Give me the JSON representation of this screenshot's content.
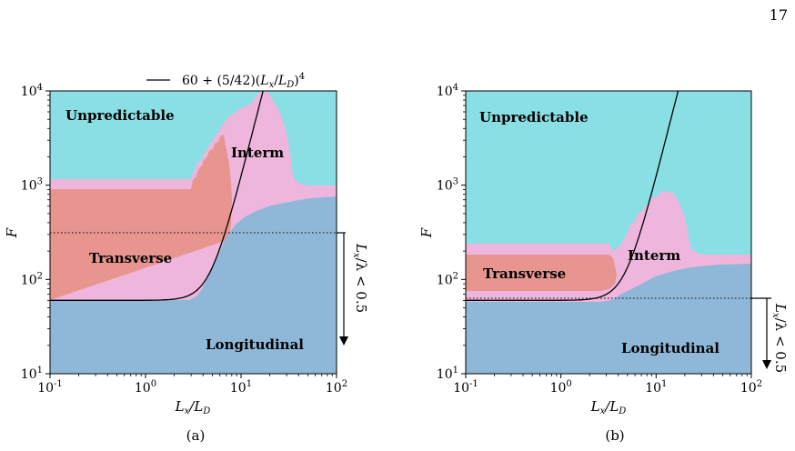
{
  "page_number": "17",
  "colors": {
    "unpredictable": "#8ADFE5",
    "interm": "#EEB6DC",
    "transverse": "#E7958E",
    "longitudinal": "#8FB8D8"
  },
  "chart_data": [
    {
      "type": "phase-diagram",
      "panel_label": "(a)",
      "xscale": "log",
      "yscale": "log",
      "xlim": [
        0.1,
        100
      ],
      "ylim": [
        10,
        10000
      ],
      "xlabel": "L_x/L_D",
      "ylabel": "F",
      "x_ticks": [
        "10^-1",
        "10^0",
        "10^1",
        "10^2"
      ],
      "y_ticks": [
        "10^1",
        "10^2",
        "10^3",
        "10^4"
      ],
      "regions": [
        "Unpredictable",
        "Interm",
        "Transverse",
        "Longitudinal"
      ],
      "curve": {
        "legend": "60 + (5/42)(L_x/L_D)^4",
        "form": "F = 60 + (5/42) x^4"
      },
      "dotted_line_F": 300,
      "arrow_label": "L_x/λ < 0.5"
    },
    {
      "type": "phase-diagram",
      "panel_label": "(b)",
      "xscale": "log",
      "yscale": "log",
      "xlim": [
        0.1,
        100
      ],
      "ylim": [
        10,
        10000
      ],
      "xlabel": "L_x/L_D",
      "ylabel": "F",
      "x_ticks": [
        "10^-1",
        "10^0",
        "10^1",
        "10^2"
      ],
      "y_ticks": [
        "10^1",
        "10^2",
        "10^3",
        "10^4"
      ],
      "regions": [
        "Unpredictable",
        "Interm",
        "Transverse",
        "Longitudinal"
      ],
      "curve": {
        "form": "F = 60 + (5/42) x^4"
      },
      "dotted_line_F": 62,
      "arrow_label": "L_x/λ < 0.5"
    }
  ],
  "labels": {
    "unpredictable": "Unpredictable",
    "interm": "Interm",
    "transverse": "Transverse",
    "longitudinal": "Longitudinal",
    "legend_prefix": "60 + (5/42)(",
    "legend_L": "L",
    "legend_x": "x",
    "legend_slash": "/",
    "legend_D": "D",
    "legend_suffix": ")",
    "legend_exp": "4",
    "arrow_L": "L",
    "arrow_x": "x",
    "arrow_rest": "/λ < 0.5",
    "xlabel_L": "L",
    "xlabel_x": "x",
    "xlabel_slash": "/L",
    "xlabel_D": "D",
    "ylabel": "F",
    "tick_base": "10",
    "panel_a": "(a)",
    "panel_b": "(b)"
  }
}
